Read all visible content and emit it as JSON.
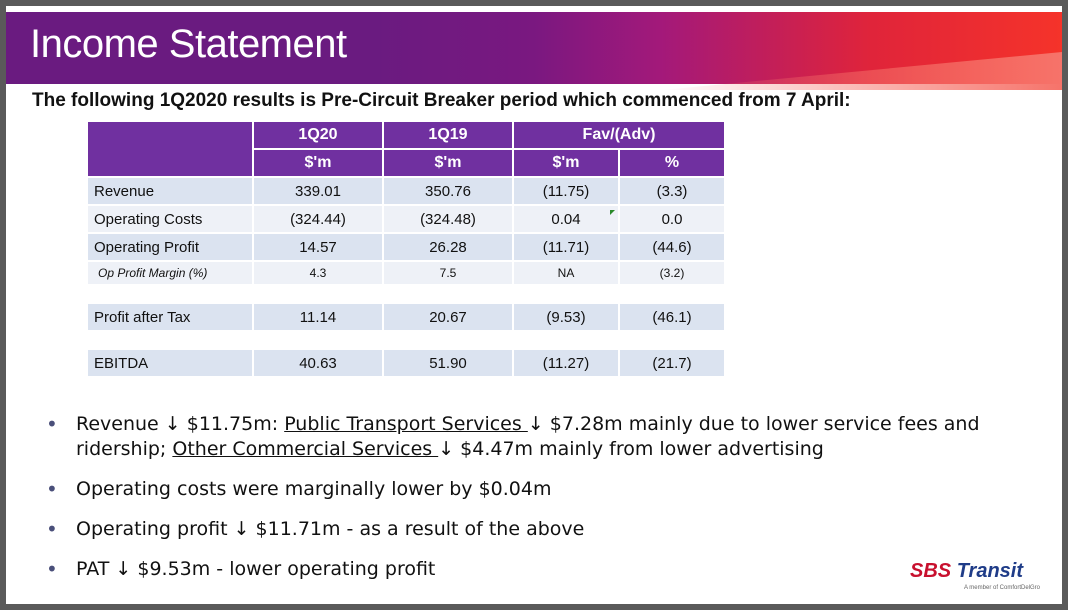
{
  "title": "Income Statement",
  "subtitle": "The following 1Q2020 results is Pre-Circuit Breaker period which commenced from 7 April:",
  "table": {
    "header1": [
      "1Q20",
      "1Q19",
      "Fav/(Adv)"
    ],
    "header2": [
      "$'m",
      "$'m",
      "$'m",
      "%"
    ],
    "rows": [
      {
        "label": "Revenue",
        "v": [
          "339.01",
          "350.76",
          "(11.75)",
          "(3.3)"
        ]
      },
      {
        "label": "Operating Costs",
        "v": [
          "(324.44)",
          "(324.48)",
          "0.04",
          "0.0"
        ]
      },
      {
        "label": "Operating Profit",
        "v": [
          "14.57",
          "26.28",
          "(11.71)",
          "(44.6)"
        ]
      },
      {
        "label": "Op Profit Margin (%)",
        "v": [
          "4.3",
          "7.5",
          "NA",
          "(3.2)"
        ]
      },
      {
        "label": "Profit after Tax",
        "v": [
          "11.14",
          "20.67",
          "(9.53)",
          "(46.1)"
        ]
      },
      {
        "label": "EBITDA",
        "v": [
          "40.63",
          "51.90",
          "(11.27)",
          "(21.7)"
        ]
      }
    ]
  },
  "bullets": {
    "b1_a": "Revenue ↓ $11.75m: ",
    "b1_link1": "Public Transport Services ",
    "b1_b": "↓ $7.28m mainly due to lower service fees and ridership; ",
    "b1_link2": "Other Commercial Services ",
    "b1_c": "↓ $4.47m mainly from lower advertising",
    "b2": "Operating costs were marginally lower by $0.04m",
    "b3": "Operating profit ↓ $11.71m - as a result of the above",
    "b4": "PAT ↓ $9.53m - lower operating profit"
  },
  "logo": {
    "part1": "SBS ",
    "part2": "Transit",
    "tagline": "A member of ComfortDelGro"
  },
  "colors": {
    "header": "#7030a0",
    "row_dark": "#dbe3f0",
    "row_light": "#eef1f7",
    "logo_red": "#c8102e",
    "logo_blue": "#1f3c88"
  }
}
